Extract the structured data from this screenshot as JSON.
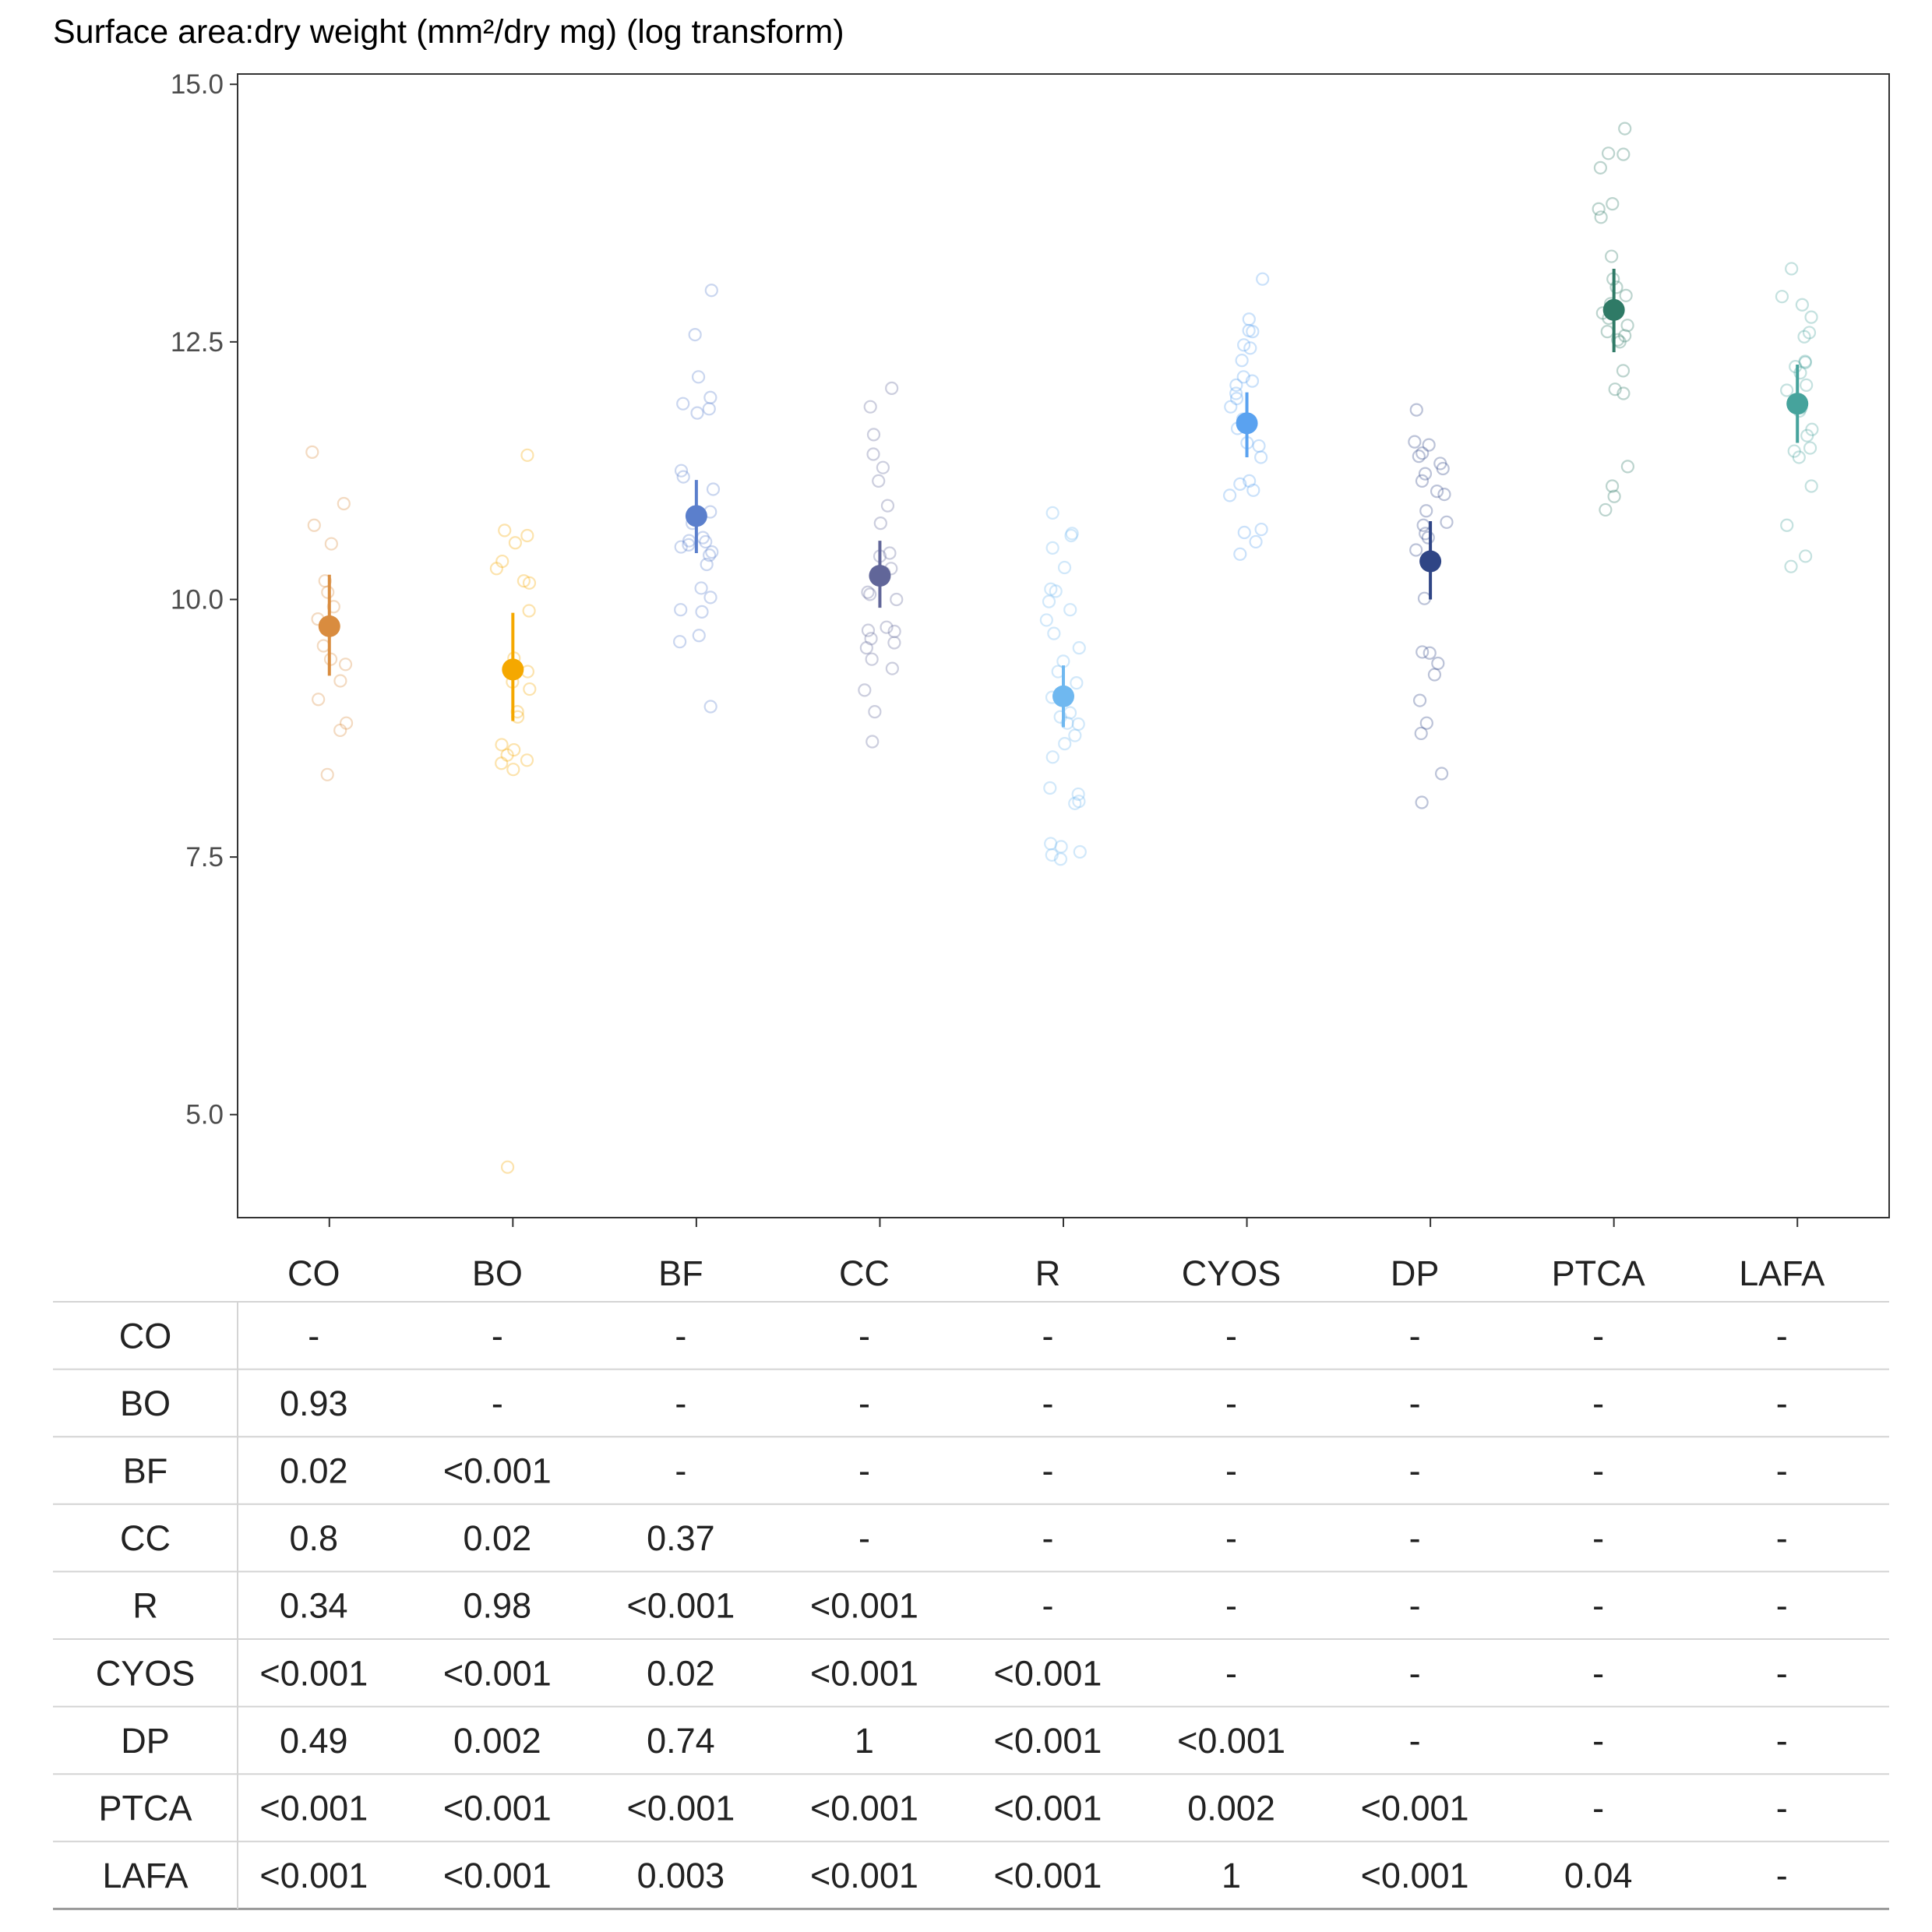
{
  "chart_data": {
    "type": "scatter",
    "title": "Surface area:dry weight (mm²/dry mg) (log transform)",
    "xlabel": "",
    "ylabel": "",
    "ylim": [
      4.0,
      15.1
    ],
    "yticks": [
      "5.0",
      "7.5",
      "10.0",
      "12.5",
      "15.0"
    ],
    "grid": false,
    "categories": [
      "CO",
      "BO",
      "BF",
      "CC",
      "R",
      "CYOS",
      "DP",
      "PTCA",
      "LAFA"
    ],
    "colors": {
      "CO": "#d98c3f",
      "BO": "#f5a800",
      "BF": "#5b7fcc",
      "CC": "#616699",
      "R": "#6fb8f0",
      "CYOS": "#5aa2f0",
      "DP": "#2f4585",
      "PTCA": "#2f7a66",
      "LAFA": "#46a39c"
    },
    "series": [
      {
        "category": "CO",
        "mean": 9.74,
        "ci_low": 9.26,
        "ci_high": 10.24,
        "points": [
          11.43,
          10.93,
          10.72,
          10.54,
          10.18,
          10.07,
          9.93,
          9.81,
          9.55,
          9.42,
          9.37,
          9.21,
          9.03,
          8.8,
          8.73,
          8.3
        ]
      },
      {
        "category": "BO",
        "mean": 9.32,
        "ci_low": 8.82,
        "ci_high": 9.87,
        "points": [
          11.4,
          10.67,
          10.62,
          10.55,
          10.37,
          10.3,
          10.18,
          10.16,
          9.89,
          9.43,
          9.3,
          9.2,
          9.13,
          8.91,
          8.86,
          8.59,
          8.54,
          8.49,
          8.44,
          8.41,
          8.35,
          4.49
        ]
      },
      {
        "category": "BF",
        "mean": 10.81,
        "ci_low": 10.45,
        "ci_high": 11.16,
        "points": [
          13.0,
          12.57,
          12.16,
          11.96,
          11.9,
          11.85,
          11.81,
          11.25,
          11.19,
          11.07,
          10.85,
          10.74,
          10.6,
          10.57,
          10.56,
          10.53,
          10.51,
          10.46,
          10.43,
          10.34,
          10.11,
          10.02,
          9.9,
          9.88,
          9.65,
          9.59,
          8.96
        ]
      },
      {
        "category": "CC",
        "mean": 10.23,
        "ci_low": 9.92,
        "ci_high": 10.57,
        "points": [
          12.05,
          11.87,
          11.6,
          11.41,
          11.28,
          11.15,
          10.91,
          10.74,
          10.45,
          10.42,
          10.3,
          10.26,
          10.07,
          10.05,
          10.0,
          9.73,
          9.7,
          9.69,
          9.62,
          9.58,
          9.53,
          9.42,
          9.33,
          9.12,
          8.91,
          8.62
        ]
      },
      {
        "category": "R",
        "mean": 9.06,
        "ci_low": 8.76,
        "ci_high": 9.36,
        "points": [
          10.84,
          10.64,
          10.62,
          10.5,
          10.31,
          10.1,
          10.08,
          9.98,
          9.9,
          9.8,
          9.67,
          9.53,
          9.4,
          9.3,
          9.19,
          9.05,
          8.9,
          8.86,
          8.8,
          8.79,
          8.68,
          8.6,
          8.47,
          8.17,
          8.11,
          8.04,
          8.02,
          7.63,
          7.6,
          7.55,
          7.52,
          7.48
        ]
      },
      {
        "category": "CYOS",
        "mean": 11.71,
        "ci_low": 11.38,
        "ci_high": 12.01,
        "points": [
          13.11,
          12.72,
          12.61,
          12.6,
          12.47,
          12.44,
          12.32,
          12.16,
          12.12,
          12.08,
          12.0,
          11.95,
          11.87,
          11.75,
          11.66,
          11.52,
          11.49,
          11.38,
          11.15,
          11.12,
          11.06,
          11.01,
          10.68,
          10.65,
          10.56,
          10.44
        ]
      },
      {
        "category": "DP",
        "mean": 10.37,
        "ci_low": 10.0,
        "ci_high": 10.76,
        "points": [
          11.84,
          11.53,
          11.5,
          11.42,
          11.39,
          11.32,
          11.27,
          11.22,
          11.15,
          11.05,
          11.02,
          10.86,
          10.75,
          10.72,
          10.64,
          10.6,
          10.48,
          10.01,
          9.49,
          9.48,
          9.38,
          9.27,
          9.02,
          8.8,
          8.7,
          8.31,
          8.03
        ]
      },
      {
        "category": "PTCA",
        "mean": 12.81,
        "ci_low": 12.4,
        "ci_high": 13.21,
        "points": [
          14.57,
          14.33,
          14.32,
          14.19,
          13.84,
          13.79,
          13.71,
          13.33,
          13.11,
          13.03,
          12.95,
          12.87,
          12.78,
          12.73,
          12.66,
          12.6,
          12.56,
          12.52,
          12.5,
          12.22,
          12.04,
          12.0,
          11.29,
          11.1,
          11.0,
          10.87
        ]
      },
      {
        "category": "LAFA",
        "mean": 11.9,
        "ci_low": 11.52,
        "ci_high": 12.28,
        "points": [
          13.21,
          12.94,
          12.86,
          12.74,
          12.59,
          12.55,
          12.31,
          12.3,
          12.26,
          12.2,
          12.08,
          12.03,
          11.86,
          11.83,
          11.65,
          11.59,
          11.47,
          11.44,
          11.38,
          11.1,
          10.72,
          10.42,
          10.32
        ]
      }
    ],
    "pvalue_table": {
      "columns": [
        "CO",
        "BO",
        "BF",
        "CC",
        "R",
        "CYOS",
        "DP",
        "PTCA",
        "LAFA"
      ],
      "rows": [
        {
          "label": "CO",
          "cells": [
            "-",
            "-",
            "-",
            "-",
            "-",
            "-",
            "-",
            "-",
            "-"
          ]
        },
        {
          "label": "BO",
          "cells": [
            "0.93",
            "-",
            "-",
            "-",
            "-",
            "-",
            "-",
            "-",
            "-"
          ]
        },
        {
          "label": "BF",
          "cells": [
            "0.02",
            "<0.001",
            "-",
            "-",
            "-",
            "-",
            "-",
            "-",
            "-"
          ]
        },
        {
          "label": "CC",
          "cells": [
            "0.8",
            "0.02",
            "0.37",
            "-",
            "-",
            "-",
            "-",
            "-",
            "-"
          ]
        },
        {
          "label": "R",
          "cells": [
            "0.34",
            "0.98",
            "<0.001",
            "<0.001",
            "-",
            "-",
            "-",
            "-",
            "-"
          ]
        },
        {
          "label": "CYOS",
          "cells": [
            "<0.001",
            "<0.001",
            "0.02",
            "<0.001",
            "<0.001",
            "-",
            "-",
            "-",
            "-"
          ]
        },
        {
          "label": "DP",
          "cells": [
            "0.49",
            "0.002",
            "0.74",
            "1",
            "<0.001",
            "<0.001",
            "-",
            "-",
            "-"
          ]
        },
        {
          "label": "PTCA",
          "cells": [
            "<0.001",
            "<0.001",
            "<0.001",
            "<0.001",
            "<0.001",
            "0.002",
            "<0.001",
            "-",
            "-"
          ]
        },
        {
          "label": "LAFA",
          "cells": [
            "<0.001",
            "<0.001",
            "0.003",
            "<0.001",
            "<0.001",
            "1",
            "<0.001",
            "0.04",
            "-"
          ]
        }
      ]
    }
  }
}
